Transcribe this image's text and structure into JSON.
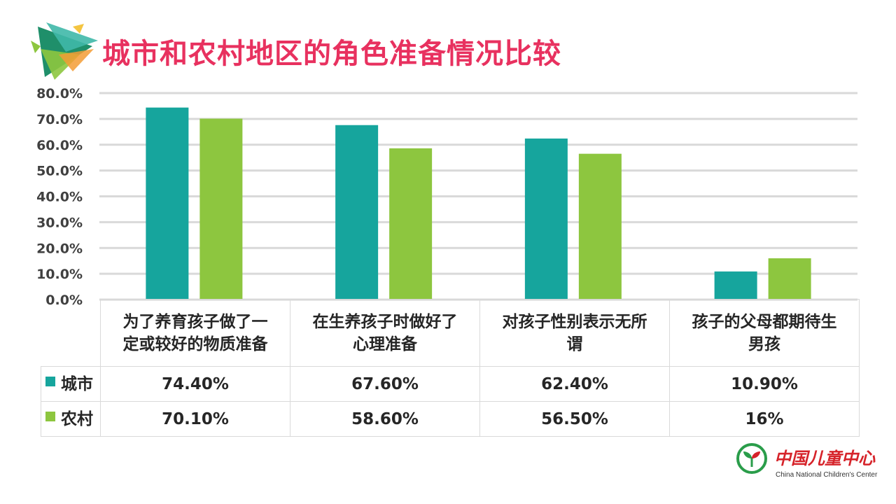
{
  "title": "城市和农村地区的角色准备情况比较",
  "colors": {
    "title": "#e8315f",
    "city": "#16a59d",
    "rural": "#8dc63f",
    "grid": "#d9d9d9",
    "axis_text": "#404040",
    "logo_red": "#d6232a",
    "logo_green": "#2a9d4a"
  },
  "chart_data": {
    "type": "bar",
    "title": "城市和农村地区的角色准备情况比较",
    "categories": [
      "为了养育孩子做了一定或较好的物质准备",
      "在生养孩子时做好了心理准备",
      "对孩子性别表示无所谓",
      "孩子的父母都期待生男孩"
    ],
    "category_lines": [
      [
        "为了养育孩子做了一",
        "定或较好的物质准备"
      ],
      [
        "在生养孩子时做好了",
        "心理准备"
      ],
      [
        "对孩子性别表示无所",
        "谓"
      ],
      [
        "孩子的父母都期待生",
        "男孩"
      ]
    ],
    "series": [
      {
        "name": "城市",
        "values": [
          74.4,
          67.6,
          62.4,
          10.9
        ],
        "labels": [
          "74.40%",
          "67.60%",
          "62.40%",
          "10.90%"
        ]
      },
      {
        "name": "农村",
        "values": [
          70.1,
          58.6,
          56.5,
          16.0
        ],
        "labels": [
          "70.10%",
          "58.60%",
          "56.50%",
          "16%"
        ]
      }
    ],
    "ylim": [
      0,
      80
    ],
    "yticks": [
      0,
      10,
      20,
      30,
      40,
      50,
      60,
      70,
      80
    ],
    "ytick_labels": [
      "0.0%",
      "10.0%",
      "20.0%",
      "30.0%",
      "40.0%",
      "50.0%",
      "60.0%",
      "70.0%",
      "80.0%"
    ],
    "grid": true,
    "legend": "data-table"
  },
  "logo": {
    "name_cn": "中国儿童中心",
    "name_en": "China National Children's Center"
  }
}
